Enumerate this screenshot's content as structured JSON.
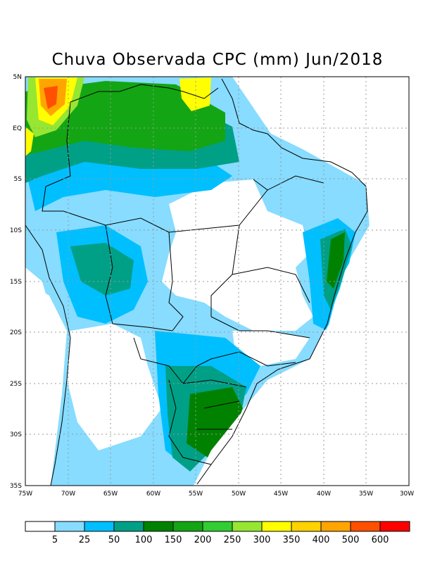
{
  "title": "Chuva Observada CPC (mm) Jun/2018",
  "lat_labels": [
    "5N",
    "EQ",
    "5S",
    "10S",
    "15S",
    "20S",
    "25S",
    "30S",
    "35S"
  ],
  "lon_labels": [
    "75W",
    "70W",
    "65W",
    "60W",
    "55W",
    "50W",
    "45W",
    "40W",
    "35W",
    "30W"
  ],
  "colorbar": {
    "colors": [
      "#ffffff",
      "#87dcff",
      "#00bfff",
      "#00a087",
      "#008200",
      "#14a514",
      "#32cd32",
      "#96e632",
      "#ffff00",
      "#ffd200",
      "#ffa500",
      "#ff5000",
      "#ff0000"
    ],
    "labels": [
      "5",
      "25",
      "50",
      "100",
      "150",
      "200",
      "250",
      "300",
      "350",
      "400",
      "500",
      "600"
    ]
  }
}
